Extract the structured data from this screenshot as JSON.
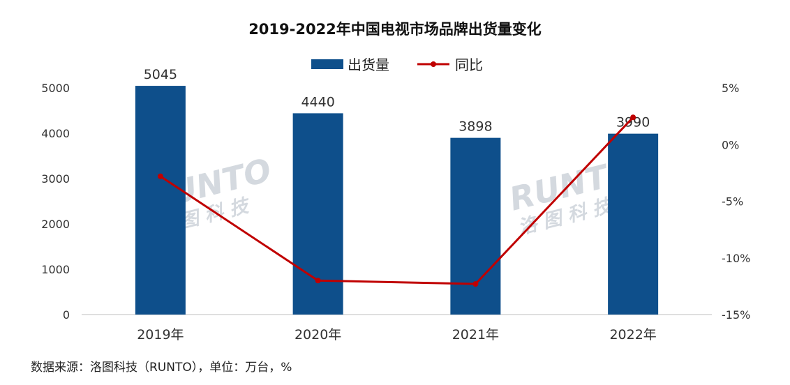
{
  "title": "2019-2022年中国电视市场品牌出货量变化",
  "source": "数据来源：洛图科技（RUNTO），单位：万台，%",
  "watermark": {
    "latin": "RUNTO",
    "cn": "洛 图 科 技"
  },
  "colors": {
    "bar": "#0e4f8b",
    "line": "#c00000",
    "axis": "#bfbfbf"
  },
  "chart_data": {
    "type": "bar",
    "categories": [
      "2019年",
      "2020年",
      "2021年",
      "2022年"
    ],
    "series": [
      {
        "name": "出货量",
        "kind": "bar",
        "axis": "left",
        "values": [
          5045,
          4440,
          3898,
          3990
        ]
      },
      {
        "name": "同比",
        "kind": "line",
        "axis": "right",
        "values": [
          -2.8,
          -12.0,
          -12.3,
          2.4
        ]
      }
    ],
    "data_labels": [
      "5045",
      "4440",
      "3898",
      "3990"
    ],
    "y_left": {
      "min": 0,
      "max": 5000,
      "ticks": [
        0,
        1000,
        2000,
        3000,
        4000,
        5000
      ],
      "labels": [
        "0",
        "1000",
        "2000",
        "3000",
        "4000",
        "5000"
      ]
    },
    "y_right": {
      "min": -15,
      "max": 5,
      "ticks": [
        -15,
        -10,
        -5,
        0,
        5
      ],
      "labels": [
        "-15%",
        "-10%",
        "-5%",
        "0%",
        "5%"
      ]
    },
    "legend_position": "top-center",
    "grid": false
  }
}
